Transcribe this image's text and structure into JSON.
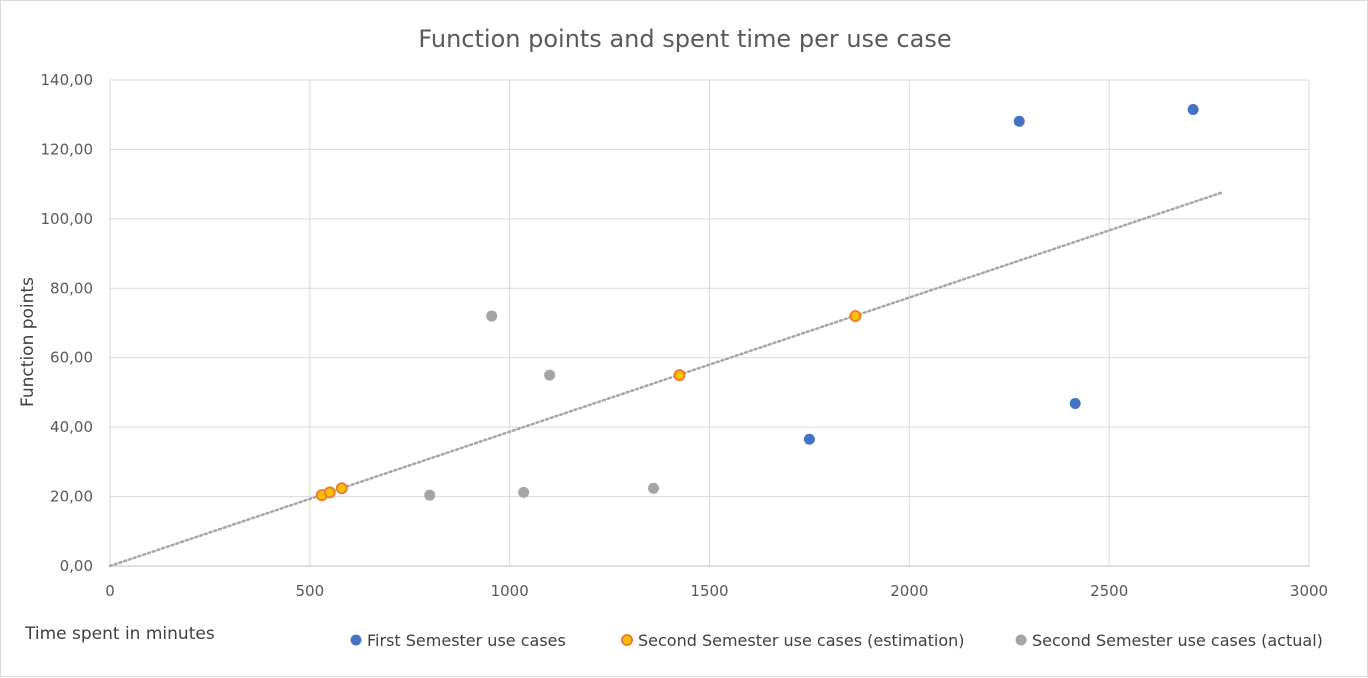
{
  "chart_data": {
    "type": "scatter",
    "title": "Function points and spent time per use case",
    "xlabel": "Time spent in minutes",
    "ylabel": "Function points",
    "xlim": [
      0,
      3000
    ],
    "ylim": [
      0,
      140
    ],
    "x_ticks": [
      "0",
      "500",
      "1000",
      "1500",
      "2000",
      "2500",
      "3000"
    ],
    "y_ticks": [
      "0,00",
      "20,00",
      "40,00",
      "60,00",
      "80,00",
      "100,00",
      "120,00",
      "140,00"
    ],
    "grid": true,
    "legend_position": "bottom",
    "series": [
      {
        "name": "First Semester use cases",
        "color": "#4472c4",
        "marker": "filled-circle",
        "points": [
          [
            1750,
            36.5
          ],
          [
            2275,
            128.1
          ],
          [
            2415,
            46.8
          ],
          [
            2710,
            131.5
          ]
        ]
      },
      {
        "name": "Second Semester use cases (estimation)",
        "color": "#ffc000",
        "stroke": "#ed7d31",
        "marker": "outlined-circle",
        "points": [
          [
            530,
            20.4
          ],
          [
            550,
            21.2
          ],
          [
            580,
            22.4
          ],
          [
            1425,
            55.0
          ],
          [
            1865,
            72.0
          ]
        ]
      },
      {
        "name": "Second Semester use cases (actual)",
        "color": "#a5a5a5",
        "marker": "filled-circle",
        "points": [
          [
            800,
            20.4
          ],
          [
            955,
            72.0
          ],
          [
            1035,
            21.2
          ],
          [
            1100,
            55.0
          ],
          [
            1360,
            22.4
          ]
        ]
      }
    ],
    "trendline": {
      "type": "linear",
      "color": "#a5a5a5",
      "style": "dotted",
      "points": [
        [
          0,
          0
        ],
        [
          2780,
          107.5
        ]
      ]
    }
  }
}
